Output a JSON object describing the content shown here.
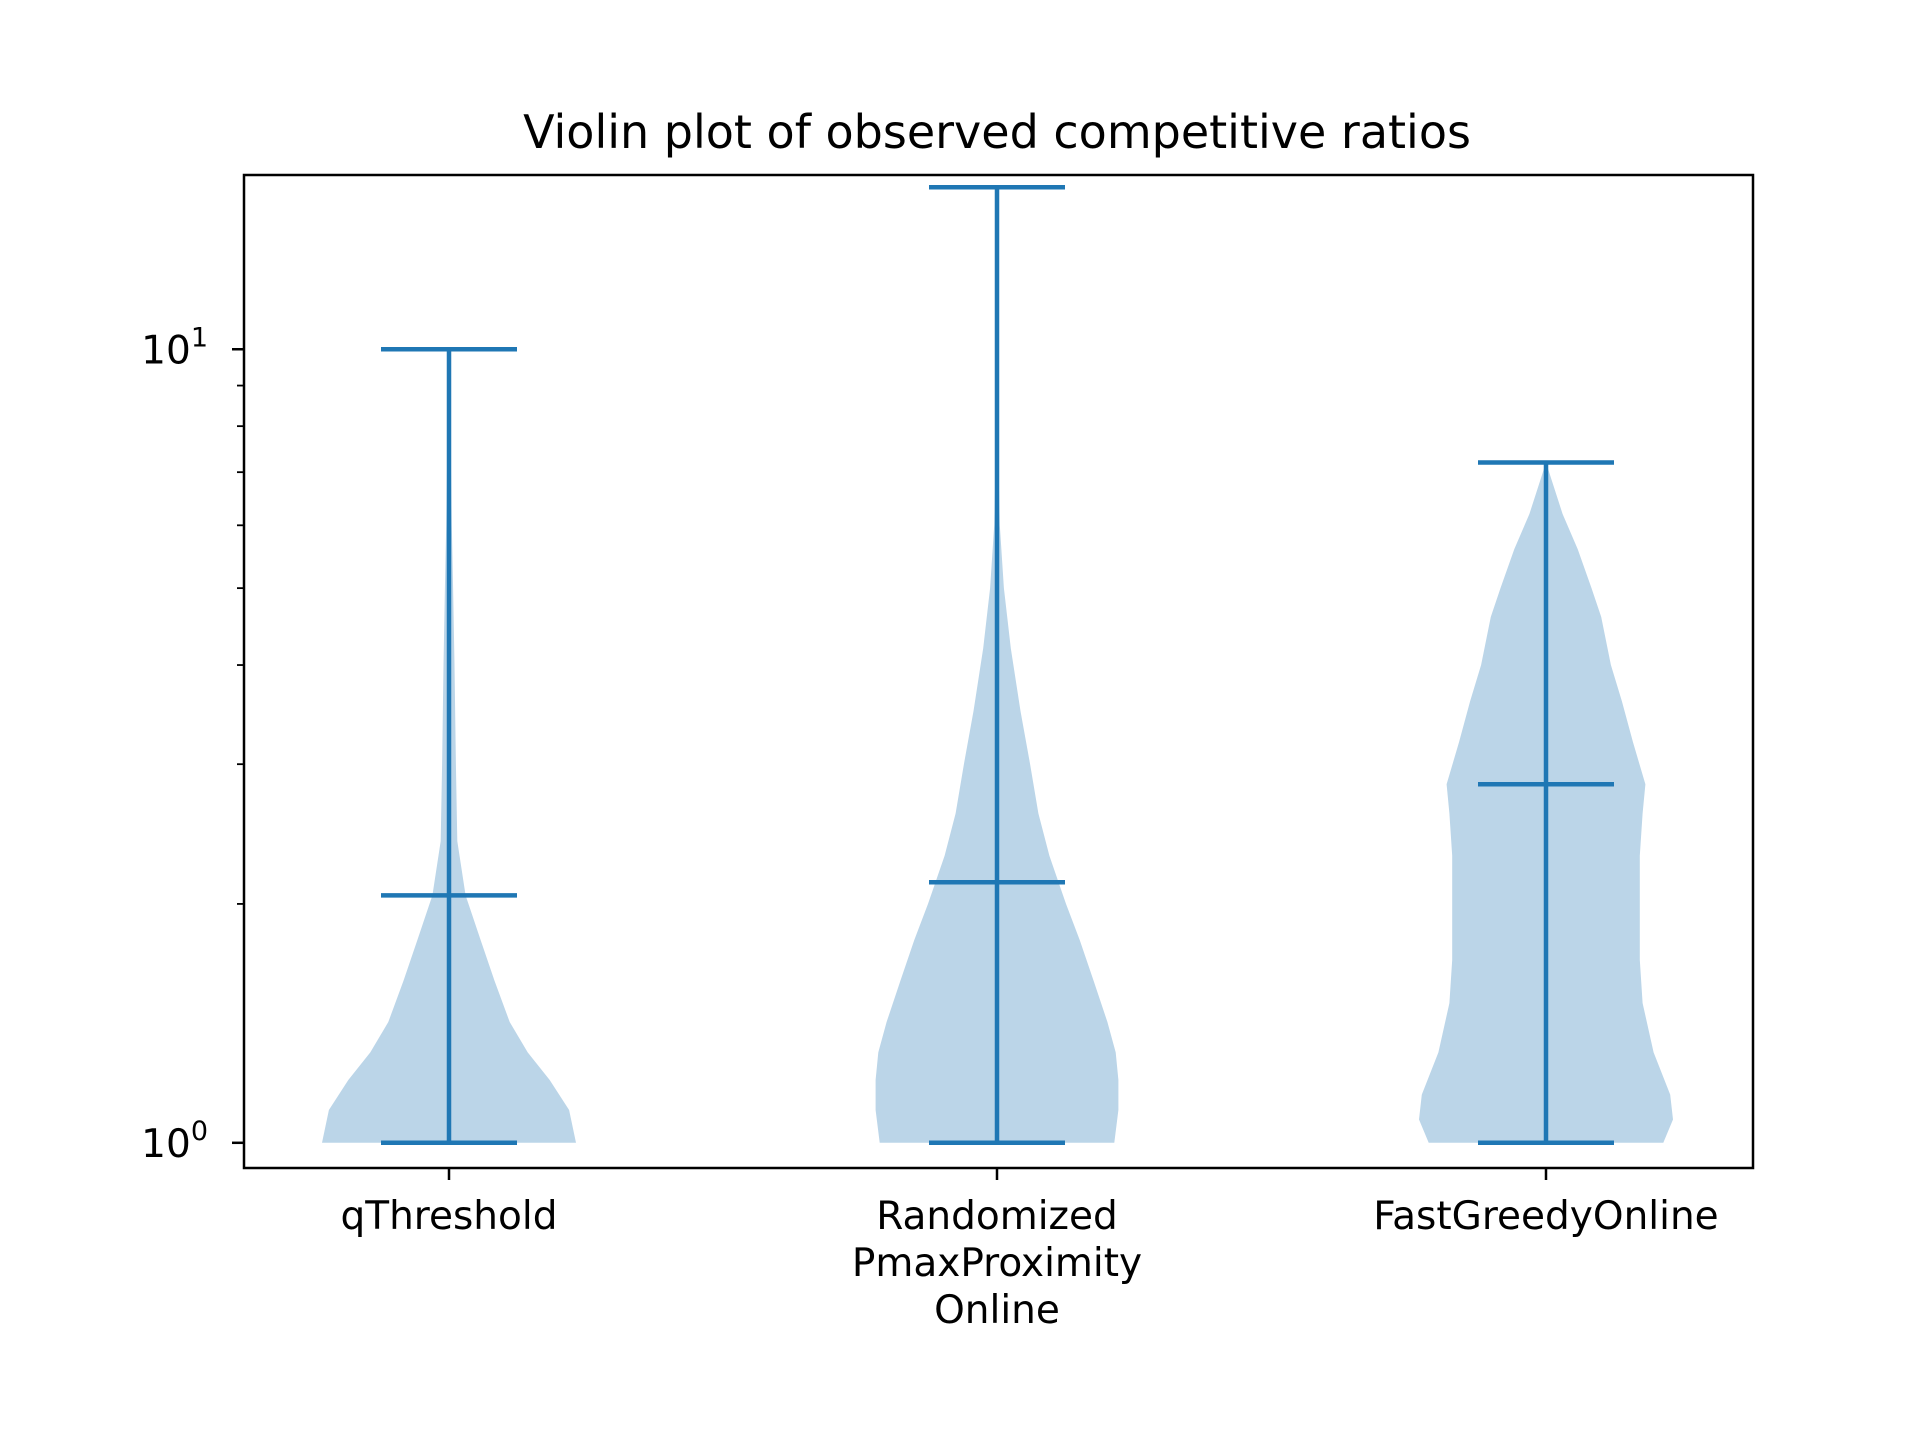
{
  "chart_data": {
    "type": "violin",
    "title": "Violin plot of observed competitive ratios",
    "xlabel": "",
    "ylabel": "",
    "y_scale": "log",
    "ylim": [
      0.9295,
      16.58
    ],
    "grid": false,
    "legend": null,
    "y_ticks": [
      {
        "value": 1,
        "base": "10",
        "exp": "0"
      },
      {
        "value": 10,
        "base": "10",
        "exp": "1"
      }
    ],
    "series_color": "#1f77b4",
    "body_color": "#bbd5e8",
    "categories": [
      {
        "label_lines": [
          "qThreshold"
        ],
        "min": 1.0,
        "median": 2.05,
        "max": 10.0,
        "density": [
          [
            1.0,
            0.92
          ],
          [
            1.1,
            0.87
          ],
          [
            1.2,
            0.73
          ],
          [
            1.3,
            0.57
          ],
          [
            1.42,
            0.44
          ],
          [
            1.6,
            0.33
          ],
          [
            1.8,
            0.23
          ],
          [
            2.05,
            0.12
          ],
          [
            2.4,
            0.06
          ],
          [
            3.0,
            0.05
          ],
          [
            4.0,
            0.04
          ],
          [
            5.0,
            0.03
          ],
          [
            6.0,
            0.02
          ],
          [
            8.0,
            0.01
          ],
          [
            10.0,
            0.0
          ]
        ]
      },
      {
        "label_lines": [
          "Randomized",
          "PmaxProximity",
          "Online"
        ],
        "min": 1.0,
        "median": 2.13,
        "max": 16.0,
        "density": [
          [
            1.0,
            0.85
          ],
          [
            1.1,
            0.88
          ],
          [
            1.2,
            0.88
          ],
          [
            1.3,
            0.86
          ],
          [
            1.42,
            0.8
          ],
          [
            1.6,
            0.7
          ],
          [
            1.8,
            0.6
          ],
          [
            2.0,
            0.5
          ],
          [
            2.3,
            0.38
          ],
          [
            2.6,
            0.3
          ],
          [
            3.0,
            0.24
          ],
          [
            3.5,
            0.17
          ],
          [
            4.2,
            0.1
          ],
          [
            5.0,
            0.05
          ],
          [
            6.0,
            0.02
          ],
          [
            8.0,
            0.005
          ],
          [
            16.0,
            0.0
          ]
        ]
      },
      {
        "label_lines": [
          "FastGreedyOnline"
        ],
        "min": 1.0,
        "median": 2.83,
        "max": 7.2,
        "density": [
          [
            1.0,
            0.85
          ],
          [
            1.07,
            0.92
          ],
          [
            1.15,
            0.9
          ],
          [
            1.3,
            0.78
          ],
          [
            1.5,
            0.7
          ],
          [
            1.7,
            0.68
          ],
          [
            2.0,
            0.68
          ],
          [
            2.3,
            0.68
          ],
          [
            2.6,
            0.7
          ],
          [
            2.83,
            0.72
          ],
          [
            3.2,
            0.63
          ],
          [
            3.6,
            0.55
          ],
          [
            4.0,
            0.47
          ],
          [
            4.6,
            0.4
          ],
          [
            5.0,
            0.33
          ],
          [
            5.6,
            0.23
          ],
          [
            6.2,
            0.12
          ],
          [
            7.2,
            0.0
          ]
        ]
      }
    ]
  }
}
